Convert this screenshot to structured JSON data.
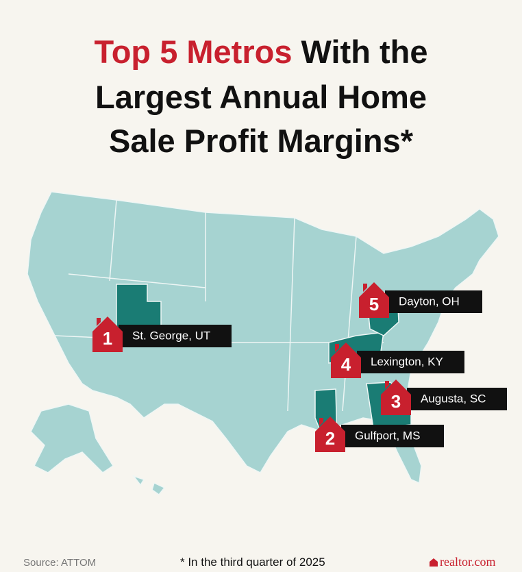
{
  "title": [
    "Top 5 Metros",
    "With the",
    "Largest Annual Home",
    "Sale Profit Margins*"
  ],
  "markers": [
    {
      "rank": 1,
      "label": "St. George, UT"
    },
    {
      "rank": 2,
      "label": "Gulfport, MS"
    },
    {
      "rank": 3,
      "label": "Augusta, SC"
    },
    {
      "rank": 4,
      "label": "Lexington, KY"
    },
    {
      "rank": 5,
      "label": "Dayton, OH"
    }
  ],
  "footer": {
    "source": "Source: ATTOM",
    "note": "* In the third quarter of 2025",
    "logo": "realtor.com"
  }
}
